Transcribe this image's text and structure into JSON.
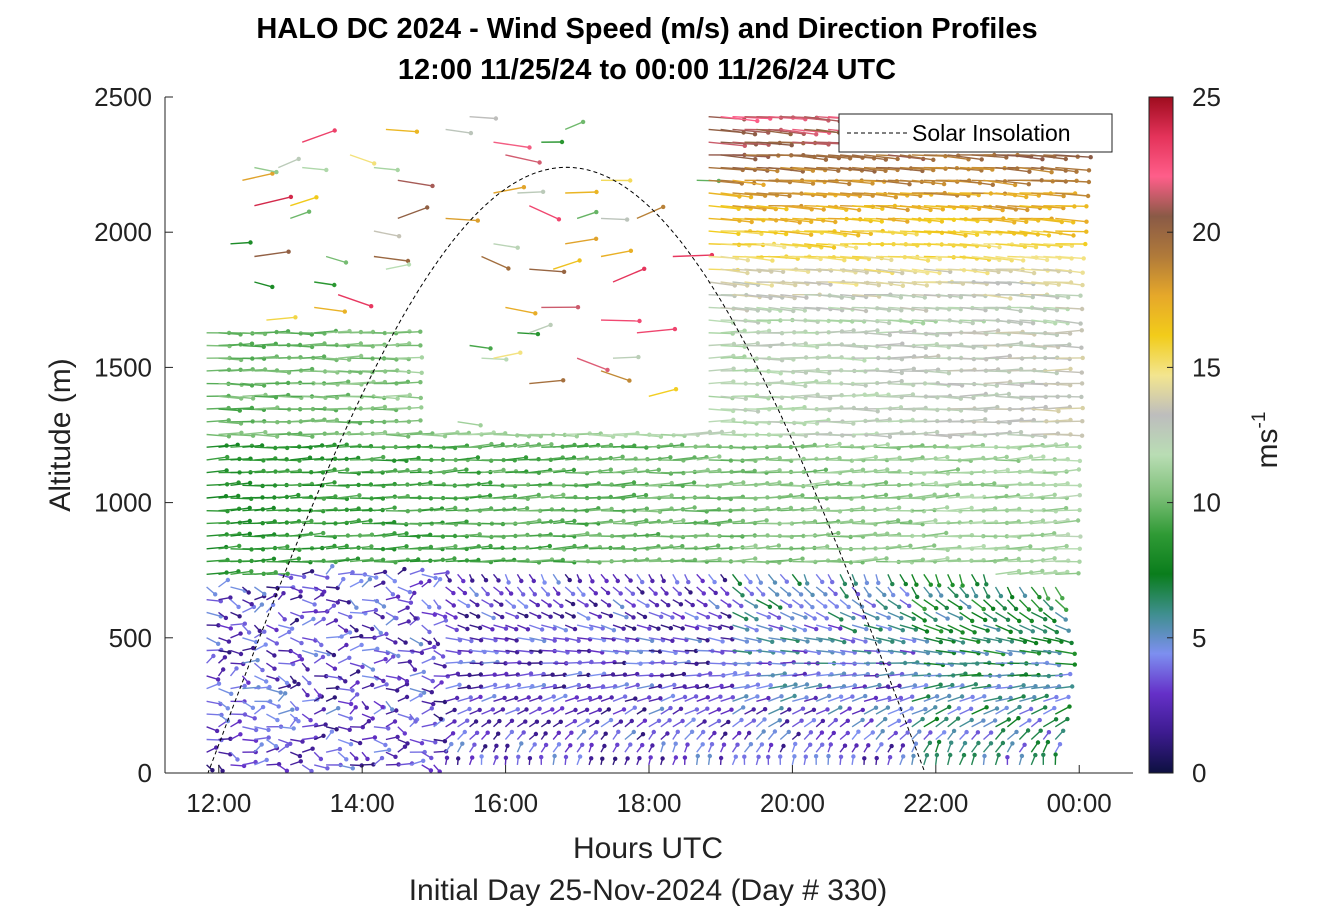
{
  "chart_data": {
    "type": "quiver",
    "title": "HALO DC 2024 - Wind Speed (m/s) and Direction Profiles",
    "subtitle": "12:00 11/25/24 to 00:00 11/26/24  UTC",
    "xlabel": "Hours UTC",
    "xlabel2": "Initial Day 25-Nov-2024 (Day # 330)",
    "ylabel": "Altitude (m)",
    "x_tick_labels": [
      "12:00",
      "14:00",
      "16:00",
      "18:00",
      "20:00",
      "22:00",
      "00:00"
    ],
    "x_tick_hours": [
      12,
      14,
      16,
      18,
      20,
      22,
      24
    ],
    "xlim_hours": [
      11.25,
      24.75
    ],
    "y_ticks": [
      0,
      500,
      1000,
      1500,
      2000,
      2500
    ],
    "y_tick_labels": [
      "0",
      "500",
      "1000",
      "1500",
      "2000",
      "2500"
    ],
    "ylim": [
      0,
      2500
    ],
    "colorbar": {
      "label": "ms",
      "label_exponent": "-1",
      "range": [
        0,
        25
      ],
      "ticks": [
        0,
        5,
        10,
        15,
        20,
        25
      ],
      "tick_labels": [
        "0",
        "5",
        "10",
        "15",
        "20",
        "25"
      ],
      "colors": [
        "#0d1040",
        "#3c1b8f",
        "#6530c8",
        "#7d8ff0",
        "#3f8f8f",
        "#0a7d1c",
        "#2f9a35",
        "#7fc07a",
        "#b9ddb4",
        "#bdbdbd",
        "#f3e58f",
        "#f2cc1a",
        "#e6a82a",
        "#b07a3a",
        "#8a5a46",
        "#ff5e8a",
        "#e4335a",
        "#9e0c1e"
      ]
    },
    "legend": {
      "label": "Solar Insolation",
      "placement": "top-right"
    },
    "solar_insolation": {
      "start_hour": 11.85,
      "peak_hour": 16.85,
      "peak_altitude_m": 2240,
      "end_hour": 21.85
    },
    "profiles": {
      "start_hour": 11.83,
      "end_hour": 23.67,
      "step_hours": 0.1667,
      "altitude_step_m": 47,
      "regimes": [
        {
          "name": "surface_layer",
          "altitude_m": [
            30,
            760
          ],
          "speed_ms": [
            1,
            5
          ],
          "dir_deg": [
            200,
            340
          ]
        },
        {
          "name": "mixed_layer_lower",
          "altitude_m": [
            760,
            1250
          ],
          "speed_ms": [
            6,
            12
          ],
          "dir_deg": [
            255,
            275
          ]
        },
        {
          "name": "mixed_layer_upper",
          "altitude_m": [
            1250,
            1670
          ],
          "speed_ms": [
            7,
            14
          ],
          "dir_deg": [
            260,
            280
          ]
        },
        {
          "name": "free_troposphere",
          "altitude_m": [
            1670,
            2460
          ],
          "speed_ms": [
            12,
            22
          ],
          "dir_deg": [
            270,
            285
          ]
        }
      ]
    }
  }
}
